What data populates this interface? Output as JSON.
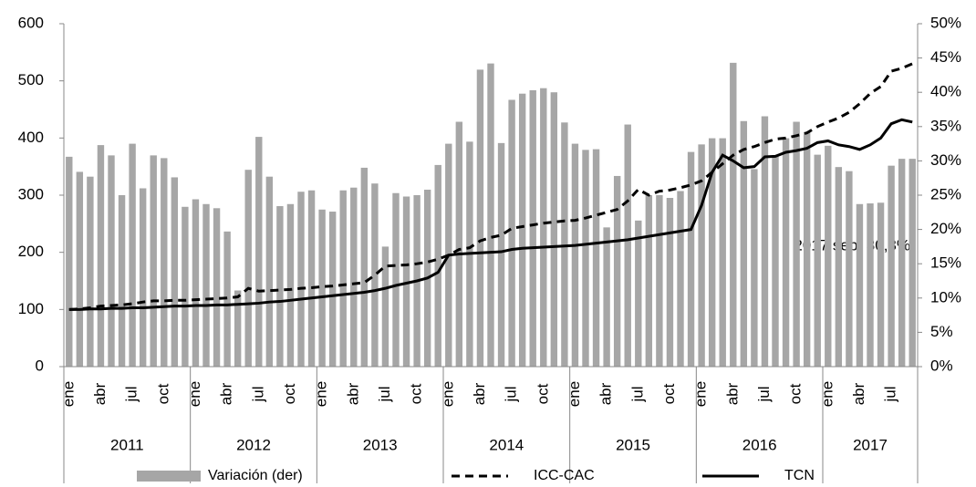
{
  "chart_data": {
    "type": "bar-line",
    "categories": [
      "ene",
      null,
      null,
      "abr",
      null,
      null,
      "jul",
      null,
      null,
      "oct",
      null,
      null,
      "ene",
      null,
      null,
      "abr",
      null,
      null,
      "jul",
      null,
      null,
      "oct",
      null,
      null,
      "ene",
      null,
      null,
      "abr",
      null,
      null,
      "jul",
      null,
      null,
      "oct",
      null,
      null,
      "ene",
      null,
      null,
      "abr",
      null,
      null,
      "jul",
      null,
      null,
      "oct",
      null,
      null,
      "ene",
      null,
      null,
      "abr",
      null,
      null,
      "jul",
      null,
      null,
      "oct",
      null,
      null,
      "ene",
      null,
      null,
      "abr",
      null,
      null,
      "jul",
      null,
      null,
      "oct",
      null,
      null,
      "ene",
      null,
      null,
      "abr",
      null,
      null,
      "jul",
      null,
      null
    ],
    "years": [
      "2011",
      "2012",
      "2013",
      "2014",
      "2015",
      "2016",
      "2017"
    ],
    "ylim": [
      0,
      600
    ],
    "yticks": [
      0,
      100,
      200,
      300,
      400,
      500,
      600
    ],
    "y2lim": [
      0,
      50
    ],
    "y2ticks": [
      {
        "value": 0,
        "label": "0%"
      },
      {
        "value": 5,
        "label": "5%"
      },
      {
        "value": 10,
        "label": "10%"
      },
      {
        "value": 15,
        "label": "15%"
      },
      {
        "value": 20,
        "label": "20%"
      },
      {
        "value": 25,
        "label": "25%"
      },
      {
        "value": 30,
        "label": "30%"
      },
      {
        "value": 35,
        "label": "35%"
      },
      {
        "value": 40,
        "label": "40%"
      },
      {
        "value": 45,
        "label": "45%"
      },
      {
        "value": 50,
        "label": "50%"
      }
    ],
    "series": [
      {
        "name": "Variación (der)",
        "kind": "bar",
        "axis": "y2",
        "color": "#a6a6a6",
        "values": [
          30.6,
          28.4,
          27.7,
          32.3,
          30.8,
          25.0,
          32.5,
          26.0,
          30.8,
          30.4,
          27.6,
          23.3,
          24.4,
          23.7,
          23.1,
          19.7,
          11.1,
          28.7,
          33.5,
          27.7,
          23.4,
          23.7,
          25.5,
          25.7,
          22.9,
          22.6,
          25.7,
          26.1,
          29.0,
          26.7,
          17.5,
          25.3,
          24.8,
          25.0,
          25.8,
          29.4,
          32.5,
          35.7,
          32.8,
          43.3,
          44.2,
          32.6,
          38.9,
          39.8,
          40.3,
          40.6,
          40.0,
          35.6,
          32.5,
          31.6,
          31.7,
          20.3,
          27.8,
          35.3,
          21.3,
          25.0,
          25.0,
          24.6,
          25.6,
          31.3,
          32.4,
          33.3,
          33.3,
          44.3,
          35.8,
          28.8,
          36.5,
          30.8,
          33.3,
          35.7,
          34.2,
          30.9,
          32.2,
          29.1,
          28.5,
          23.7,
          23.8,
          23.9,
          29.3,
          30.3,
          30.3
        ]
      },
      {
        "name": "ICC-CAC",
        "kind": "line",
        "style": "dashed",
        "color": "#000000",
        "values": [
          100,
          101,
          103,
          106,
          107,
          108,
          110,
          113,
          115,
          115,
          116,
          116,
          117,
          118,
          119,
          120,
          122,
          137,
          132,
          133,
          134,
          135,
          137,
          138,
          140,
          141,
          143,
          145,
          147,
          160,
          176,
          177,
          178,
          180,
          183,
          188,
          195,
          205,
          208,
          220,
          226,
          230,
          242,
          245,
          248,
          251,
          253,
          255,
          256,
          260,
          265,
          270,
          275,
          290,
          310,
          300,
          307,
          309,
          313,
          318,
          325,
          340,
          355,
          370,
          380,
          385,
          392,
          398,
          400,
          404,
          409,
          420,
          428,
          435,
          445,
          460,
          478,
          490,
          517,
          522,
          530
        ]
      },
      {
        "name": "TCN",
        "kind": "line",
        "style": "solid",
        "color": "#000000",
        "values": [
          100,
          100,
          101,
          101,
          102,
          102,
          103,
          103,
          104,
          105,
          106,
          106,
          107,
          107,
          108,
          108,
          109,
          110,
          111,
          113,
          114,
          116,
          118,
          120,
          122,
          124,
          126,
          128,
          130,
          133,
          137,
          142,
          146,
          150,
          155,
          165,
          195,
          197,
          198,
          199,
          200,
          201,
          205,
          207,
          208,
          209,
          210,
          211,
          212,
          214,
          216,
          218,
          220,
          222,
          225,
          228,
          231,
          234,
          237,
          240,
          282,
          340,
          370,
          360,
          348,
          350,
          367,
          368,
          375,
          378,
          382,
          392,
          395,
          388,
          385,
          380,
          388,
          400,
          425,
          432,
          428
        ]
      }
    ],
    "annotation": "2017 sep; 30,3%"
  }
}
